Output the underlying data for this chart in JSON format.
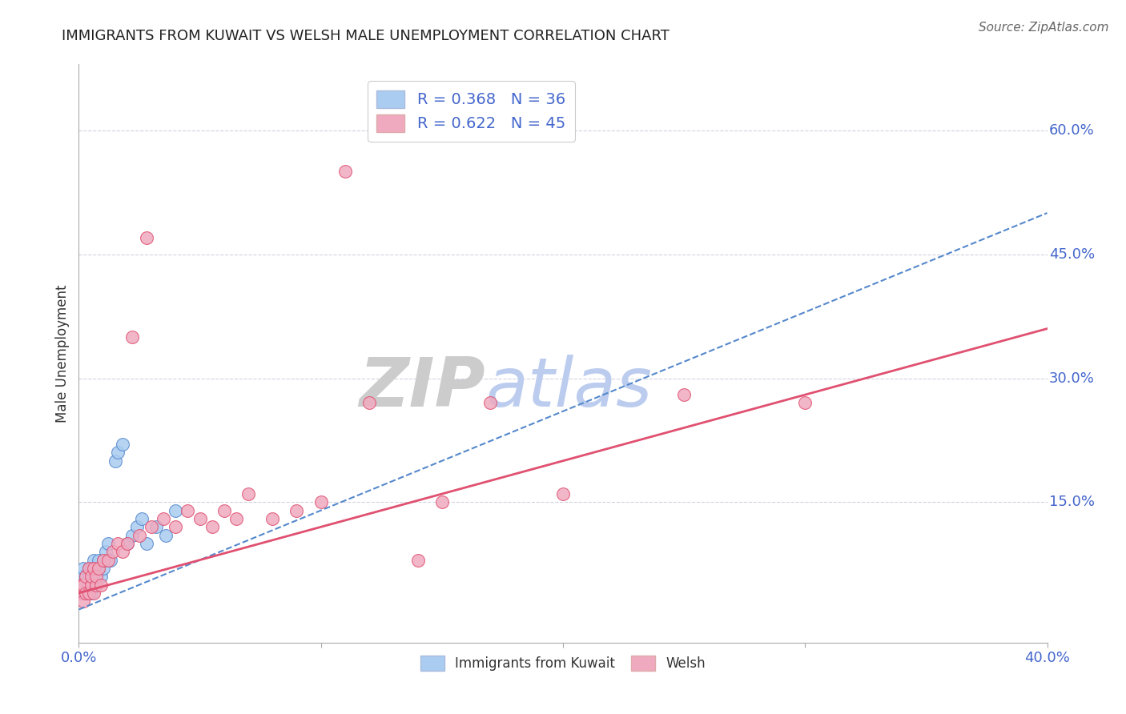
{
  "title": "IMMIGRANTS FROM KUWAIT VS WELSH MALE UNEMPLOYMENT CORRELATION CHART",
  "source_text": "Source: ZipAtlas.com",
  "ylabel": "Male Unemployment",
  "legend_label_1": "Immigrants from Kuwait",
  "legend_label_2": "Welsh",
  "r1": 0.368,
  "n1": 36,
  "r2": 0.622,
  "n2": 45,
  "xlim": [
    0.0,
    0.4
  ],
  "ylim": [
    -0.02,
    0.68
  ],
  "color_blue": "#aaccf0",
  "color_pink": "#f0aac0",
  "color_blue_line": "#5588cc",
  "color_pink_line": "#e05070",
  "color_label": "#4466cc",
  "watermark_color": "#dde4f0",
  "background_color": "#ffffff",
  "blue_line_x0": 0.0,
  "blue_line_y0": 0.02,
  "blue_line_x1": 0.4,
  "blue_line_y1": 0.5,
  "pink_line_x0": 0.0,
  "pink_line_y0": 0.04,
  "pink_line_x1": 0.4,
  "pink_line_y1": 0.36,
  "blue_points_x": [
    0.001,
    0.001,
    0.002,
    0.002,
    0.002,
    0.003,
    0.003,
    0.003,
    0.004,
    0.004,
    0.004,
    0.005,
    0.005,
    0.005,
    0.006,
    0.006,
    0.007,
    0.007,
    0.008,
    0.009,
    0.01,
    0.01,
    0.011,
    0.012,
    0.013,
    0.015,
    0.016,
    0.018,
    0.02,
    0.022,
    0.024,
    0.026,
    0.028,
    0.032,
    0.036,
    0.04
  ],
  "blue_points_y": [
    0.05,
    0.06,
    0.04,
    0.05,
    0.07,
    0.04,
    0.05,
    0.06,
    0.05,
    0.06,
    0.07,
    0.04,
    0.06,
    0.07,
    0.05,
    0.08,
    0.06,
    0.07,
    0.08,
    0.06,
    0.07,
    0.08,
    0.09,
    0.1,
    0.08,
    0.2,
    0.21,
    0.22,
    0.1,
    0.11,
    0.12,
    0.13,
    0.1,
    0.12,
    0.11,
    0.14
  ],
  "pink_points_x": [
    0.001,
    0.001,
    0.002,
    0.002,
    0.003,
    0.003,
    0.004,
    0.004,
    0.005,
    0.005,
    0.006,
    0.006,
    0.007,
    0.007,
    0.008,
    0.009,
    0.01,
    0.012,
    0.014,
    0.016,
    0.018,
    0.02,
    0.022,
    0.025,
    0.028,
    0.03,
    0.035,
    0.04,
    0.045,
    0.05,
    0.055,
    0.06,
    0.065,
    0.07,
    0.08,
    0.09,
    0.1,
    0.11,
    0.12,
    0.14,
    0.15,
    0.17,
    0.2,
    0.25,
    0.3
  ],
  "pink_points_y": [
    0.04,
    0.05,
    0.03,
    0.05,
    0.04,
    0.06,
    0.04,
    0.07,
    0.05,
    0.06,
    0.04,
    0.07,
    0.05,
    0.06,
    0.07,
    0.05,
    0.08,
    0.08,
    0.09,
    0.1,
    0.09,
    0.1,
    0.35,
    0.11,
    0.47,
    0.12,
    0.13,
    0.12,
    0.14,
    0.13,
    0.12,
    0.14,
    0.13,
    0.16,
    0.13,
    0.14,
    0.15,
    0.55,
    0.27,
    0.08,
    0.15,
    0.27,
    0.16,
    0.28,
    0.27
  ]
}
